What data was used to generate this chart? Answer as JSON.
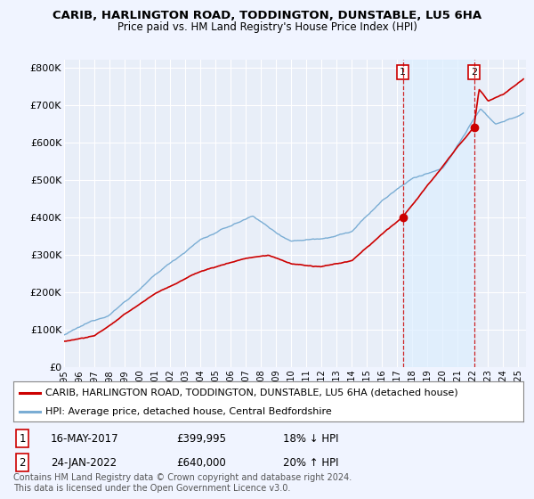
{
  "title": "CARIB, HARLINGTON ROAD, TODDINGTON, DUNSTABLE, LU5 6HA",
  "subtitle": "Price paid vs. HM Land Registry's House Price Index (HPI)",
  "background_color": "#f0f4ff",
  "plot_bg_color": "#e8eef8",
  "grid_color": "#ffffff",
  "red_label": "CARIB, HARLINGTON ROAD, TODDINGTON, DUNSTABLE, LU5 6HA (detached house)",
  "blue_label": "HPI: Average price, detached house, Central Bedfordshire",
  "footnote": "Contains HM Land Registry data © Crown copyright and database right 2024.\nThis data is licensed under the Open Government Licence v3.0.",
  "sale1_date": "16-MAY-2017",
  "sale1_price": "£399,995",
  "sale1_hpi": "18% ↓ HPI",
  "sale2_date": "24-JAN-2022",
  "sale2_price": "£640,000",
  "sale2_hpi": "20% ↑ HPI",
  "ylim": [
    0,
    820000
  ],
  "yticks": [
    0,
    100000,
    200000,
    300000,
    400000,
    500000,
    600000,
    700000,
    800000
  ],
  "ytick_labels": [
    "£0",
    "£100K",
    "£200K",
    "£300K",
    "£400K",
    "£500K",
    "£600K",
    "£700K",
    "£800K"
  ],
  "xlim_start": 1995.0,
  "xlim_end": 2025.5,
  "sale1_x": 2017.37,
  "sale1_y": 399995,
  "sale2_x": 2022.07,
  "sale2_y": 640000,
  "red_color": "#cc0000",
  "blue_color": "#7aadd4",
  "shade_color": "#ddeeff",
  "marker_color": "#cc0000"
}
